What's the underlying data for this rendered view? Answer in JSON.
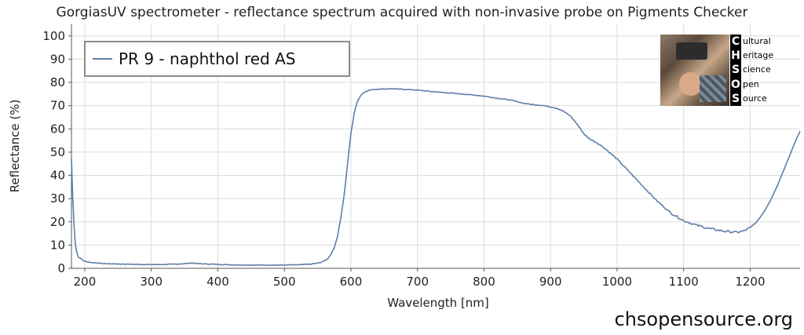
{
  "chart_data": {
    "type": "line",
    "title": "GorgiasUV spectrometer - reflectance spectrum acquired with non-invasive probe on Pigments Checker",
    "xlabel": "Wavelength [nm]",
    "ylabel": "Reflectance (%)",
    "xlim": [
      180,
      1275
    ],
    "ylim": [
      0,
      105
    ],
    "xticks": [
      200,
      300,
      400,
      500,
      600,
      700,
      800,
      900,
      1000,
      1100,
      1200
    ],
    "yticks": [
      0,
      10,
      20,
      30,
      40,
      50,
      60,
      70,
      80,
      90,
      100
    ],
    "grid": true,
    "legend_position": "top-left",
    "series": [
      {
        "name": "PR 9 - naphthol red AS",
        "color": "#5f7ea8",
        "x": [
          180,
          182,
          184,
          186,
          188,
          190,
          195,
          200,
          210,
          230,
          260,
          300,
          330,
          350,
          360,
          370,
          390,
          420,
          450,
          480,
          500,
          520,
          540,
          555,
          565,
          570,
          575,
          580,
          585,
          590,
          595,
          600,
          605,
          610,
          615,
          620,
          625,
          630,
          640,
          650,
          660,
          680,
          700,
          720,
          750,
          780,
          800,
          820,
          840,
          860,
          870,
          880,
          890,
          900,
          910,
          920,
          930,
          940,
          945,
          950,
          955,
          960,
          970,
          980,
          1000,
          1020,
          1040,
          1060,
          1080,
          1100,
          1120,
          1140,
          1160,
          1180,
          1190,
          1200,
          1210,
          1220,
          1230,
          1240,
          1250,
          1260,
          1270,
          1275
        ],
        "values": [
          47,
          30,
          18,
          10,
          7,
          5,
          4,
          3,
          2.5,
          2,
          1.8,
          1.6,
          1.7,
          2,
          2.3,
          2,
          1.8,
          1.5,
          1.4,
          1.4,
          1.4,
          1.5,
          1.8,
          2.5,
          4,
          6,
          9,
          14,
          22,
          32,
          45,
          58,
          67,
          72,
          74.5,
          75.8,
          76.4,
          76.8,
          77.1,
          77.2,
          77.3,
          77,
          76.7,
          76.1,
          75.4,
          74.7,
          74.1,
          73.2,
          72.4,
          71,
          70.6,
          70.3,
          70,
          69.5,
          68.8,
          67.5,
          65.5,
          62,
          60,
          58,
          56.5,
          55.5,
          54,
          52,
          47,
          41,
          35,
          29,
          24,
          20.5,
          18.5,
          17,
          16,
          15.5,
          16,
          17.5,
          20,
          24,
          29,
          35,
          42,
          49,
          56,
          59
        ]
      }
    ]
  },
  "watermark": {
    "website": "chsopensource.org",
    "logo_letters": [
      "C",
      "H",
      "S",
      "O",
      "S"
    ],
    "logo_words": [
      "ultural",
      "eritage",
      "cience",
      "pen",
      "ource"
    ]
  }
}
